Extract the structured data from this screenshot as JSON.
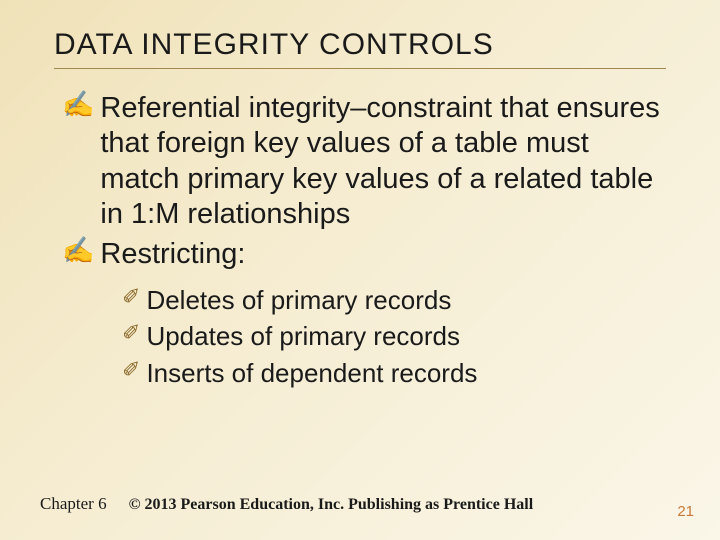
{
  "title": "DATA INTEGRITY CONTROLS",
  "bullets": [
    {
      "marker": "✍",
      "text": "Referential integrity–constraint that ensures that foreign key values of a table must match primary key values of a related table in 1:M relationships"
    },
    {
      "marker": "✍",
      "text": "Restricting:"
    }
  ],
  "subbullets": [
    {
      "marker": "✐",
      "text": "Deletes of primary records"
    },
    {
      "marker": "✐",
      "text": "Updates of primary records"
    },
    {
      "marker": "✐",
      "text": "Inserts of dependent records"
    }
  ],
  "footer": {
    "chapter": "Chapter 6",
    "copyright": "© 2013 Pearson Education, Inc.  Publishing as Prentice Hall"
  },
  "page_number": "21",
  "style": {
    "title_fontsize": 30,
    "body_fontsize": 29,
    "sub_fontsize": 26,
    "marker_color": "#8a6a2a",
    "text_color": "#1a1a1a",
    "underline_color": "#a08850",
    "pagenum_color": "#c97a3a",
    "bg_gradient_from": "#f0e2b8",
    "bg_gradient_to": "#faf6e8"
  }
}
